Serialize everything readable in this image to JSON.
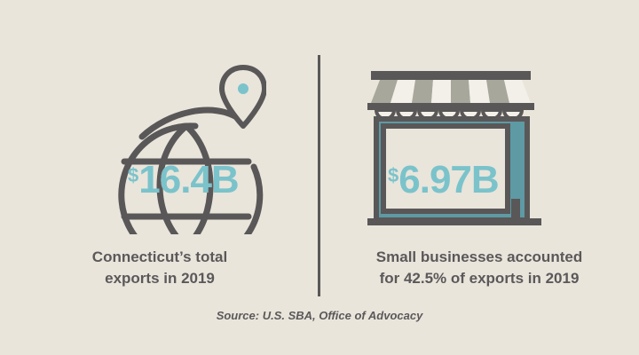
{
  "left": {
    "currency": "$",
    "value": "16.4B",
    "caption_line1": "Connecticut’s total",
    "caption_line2": "exports in 2019",
    "icon": "globe-location-pin-icon"
  },
  "right": {
    "currency": "$",
    "value": "6.97B",
    "caption_line1": "Small businesses accounted",
    "caption_line2": "for 42.5% of exports in 2019",
    "icon": "storefront-awning-icon"
  },
  "source": "Source: U.S. SBA, Office of Advocacy",
  "colors": {
    "background": "#e9e5db",
    "dark_gray": "#5a5758",
    "teal": "#7bc3cb",
    "awning_gray": "#a8a79b",
    "shop_teal": "#5e9aa4"
  }
}
